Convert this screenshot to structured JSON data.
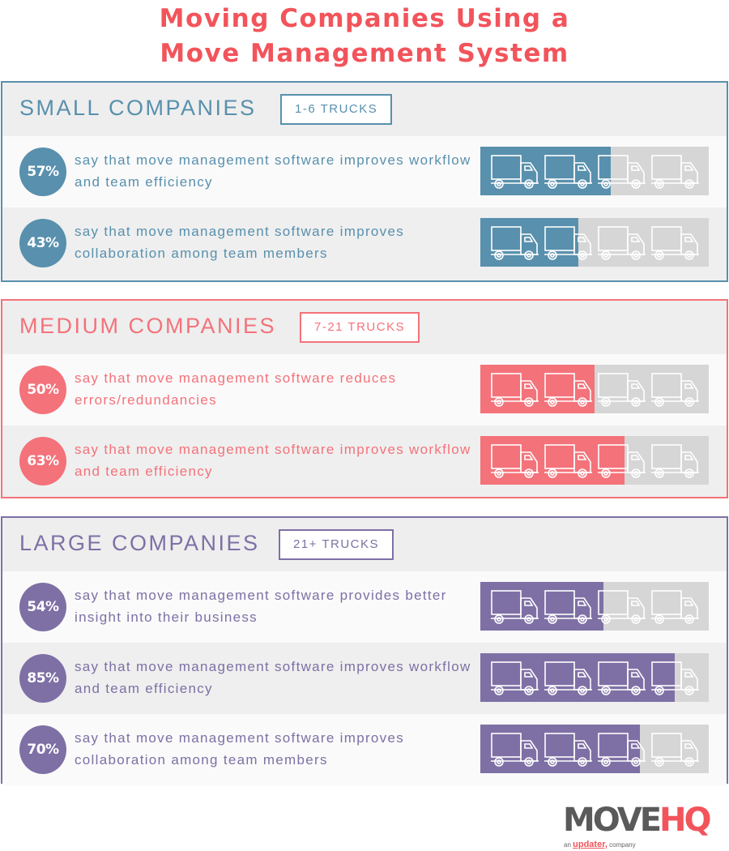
{
  "header": {
    "title_line1": "Moving Companies Using a",
    "title_line2": "Move Management System"
  },
  "colors": {
    "title": "#f2545b",
    "small": "#5890ad",
    "medium": "#f4727a",
    "large": "#7e70a5",
    "bar_empty": "#d6d6d6"
  },
  "sections": [
    {
      "title": "SMALL COMPANIES",
      "badge": "1-6 TRUCKS",
      "rows": [
        {
          "pct_label": "57%",
          "value": 57,
          "text": "say that move management software improves workflow and team efficiency"
        },
        {
          "pct_label": "43%",
          "value": 43,
          "text": "say that move management software improves collaboration among team members"
        }
      ]
    },
    {
      "title": "MEDIUM COMPANIES",
      "badge": "7-21 TRUCKS",
      "rows": [
        {
          "pct_label": "50%",
          "value": 50,
          "text": "say that move management software reduces errors/redundancies"
        },
        {
          "pct_label": "63%",
          "value": 63,
          "text": "say that move management software improves workflow and team efficiency"
        }
      ]
    },
    {
      "title": "LARGE COMPANIES",
      "badge": "21+ TRUCKS",
      "rows": [
        {
          "pct_label": "54%",
          "value": 54,
          "text": "say that move management software provides better insight into their business"
        },
        {
          "pct_label": "85%",
          "value": 85,
          "text": "say that move management software improves workflow and team efficiency"
        },
        {
          "pct_label": "70%",
          "value": 70,
          "text": "say that move management software improves collaboration among team members"
        }
      ]
    }
  ],
  "logo": {
    "move": "MOVE",
    "hq": "HQ",
    "sub_prefix": "an",
    "sub_brand": "updater,",
    "sub_suffix": "company"
  },
  "chart_data": {
    "type": "bar",
    "title": "Moving Companies Using a Move Management System",
    "orientation": "horizontal",
    "unit": "%",
    "xlim": [
      0,
      100
    ],
    "grid": false,
    "legend": "none",
    "groups": [
      {
        "name": "Small Companies (1-6 trucks)",
        "categories": [
          "improves workflow and team efficiency",
          "improves collaboration among team members"
        ],
        "values": [
          57,
          43
        ]
      },
      {
        "name": "Medium Companies (7-21 trucks)",
        "categories": [
          "reduces errors/redundancies",
          "improves workflow and team efficiency"
        ],
        "values": [
          50,
          63
        ]
      },
      {
        "name": "Large Companies (21+ trucks)",
        "categories": [
          "provides better insight into their business",
          "improves workflow and team efficiency",
          "improves collaboration among team members"
        ],
        "values": [
          54,
          85,
          70
        ]
      }
    ]
  }
}
